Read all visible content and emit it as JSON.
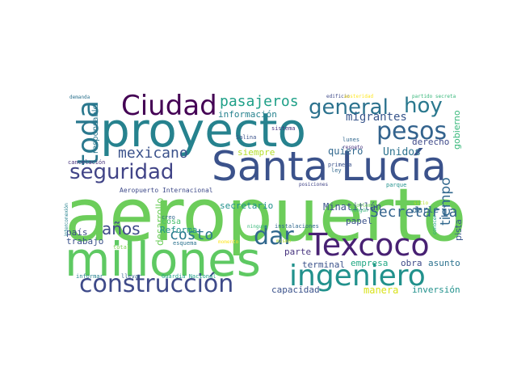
{
  "words": [
    {
      "text": "aeropuerto",
      "color": "#6ccd5a"
    },
    {
      "text": "proyecto",
      "color": "#26828e"
    },
    {
      "text": "millones",
      "color": "#5ec962"
    },
    {
      "text": "Santa Lucía",
      "color": "#3b528b"
    },
    {
      "text": "Ciudad",
      "color": "#440154"
    },
    {
      "text": "ingeniero",
      "color": "#21918c"
    },
    {
      "text": "Texcoco",
      "color": "#482173"
    },
    {
      "text": "construcción",
      "color": "#3e4a89"
    },
    {
      "text": "toda",
      "color": "#2a788e"
    },
    {
      "text": "seguridad",
      "color": "#414487"
    },
    {
      "text": "general",
      "color": "#2c728e"
    },
    {
      "text": "hoy",
      "color": "#2a788e"
    },
    {
      "text": "pesos",
      "color": "#33638d"
    },
    {
      "text": "dar",
      "color": "#31688e"
    },
    {
      "text": "pasajeros",
      "color": "#1fa088"
    },
    {
      "text": "mexicano",
      "color": "#3b528b"
    },
    {
      "text": "Secretaría",
      "color": "#33638d"
    },
    {
      "text": "costo",
      "color": "#2a788e"
    },
    {
      "text": "años",
      "color": "#3e4a89"
    },
    {
      "text": "tiempo",
      "color": "#31688e"
    },
    {
      "text": "migrantes",
      "color": "#39568c"
    },
    {
      "text": "Unidos",
      "color": "#2c728e"
    },
    {
      "text": "Minatitlán",
      "color": "#3b528b"
    },
    {
      "text": "quiero",
      "color": "#31688e"
    },
    {
      "text": "siempre",
      "color": "#b5de2b"
    },
    {
      "text": "secretario",
      "color": "#21918c"
    },
    {
      "text": "información",
      "color": "#26828e"
    },
    {
      "text": "derecho",
      "color": "#3e4989"
    },
    {
      "text": "gobierno",
      "color": "#35b779"
    },
    {
      "text": "responsable",
      "color": "#2a788e"
    },
    {
      "text": "trabajo",
      "color": "#3b528b"
    },
    {
      "text": "país",
      "color": "#3e4a89"
    },
    {
      "text": "desarrollo",
      "color": "#6ccd5a"
    },
    {
      "text": "Reforma",
      "color": "#21918c"
    },
    {
      "text": "cosa",
      "color": "#4ac16d"
    },
    {
      "text": "papel",
      "color": "#3b528b"
    },
    {
      "text": "darle",
      "color": "#31688e"
    },
    {
      "text": "pista",
      "color": "#39568c"
    },
    {
      "text": "parte",
      "color": "#46337e"
    },
    {
      "text": "terminal",
      "color": "#3b528b"
    },
    {
      "text": "empresa",
      "color": "#22a884"
    },
    {
      "text": "obra",
      "color": "#3e4a89"
    },
    {
      "text": "asunto",
      "color": "#2c728e"
    },
    {
      "text": "capacidad",
      "color": "#3b528b"
    },
    {
      "text": "manera",
      "color": "#d8e219"
    },
    {
      "text": "inversión",
      "color": "#21918c"
    },
    {
      "text": "Aeropuerto Internacional",
      "color": "#3e4a89"
    },
    {
      "text": "Guardia Nacional",
      "color": "#1fa088"
    },
    {
      "text": "informar",
      "color": "#26828e"
    },
    {
      "text": "llevar",
      "color": "#33638d"
    },
    {
      "text": "total",
      "color": "#7ad151"
    },
    {
      "text": "momento",
      "color": "#fde725"
    },
    {
      "text": "mismo",
      "color": "#b5de2b"
    },
    {
      "text": "ninguna",
      "color": "#35b779"
    },
    {
      "text": "instalaciones",
      "color": "#31688e"
    },
    {
      "text": "esquema",
      "color": "#2c728e"
    },
    {
      "text": "creo",
      "color": "#31688e"
    },
    {
      "text": "problema",
      "color": "#6ece58"
    },
    {
      "text": "ningún",
      "color": "#35b779"
    },
    {
      "text": "conocer",
      "color": "#1fa088"
    },
    {
      "text": "sitio",
      "color": "#b5de2b"
    },
    {
      "text": "posiciones",
      "color": "#414487"
    },
    {
      "text": "interconexión",
      "color": "#26828e"
    },
    {
      "text": "demanda",
      "color": "#2c728e"
    },
    {
      "text": "edificio",
      "color": "#3e4a89"
    },
    {
      "text": "austeridad",
      "color": "#fde725"
    },
    {
      "text": "partido secreta",
      "color": "#35b779"
    },
    {
      "text": "Salina",
      "color": "#3b528b"
    },
    {
      "text": "sistema",
      "color": "#46337e"
    },
    {
      "text": "lunes",
      "color": "#31688e"
    },
    {
      "text": "respeto",
      "color": "#46337e"
    },
    {
      "text": "primera",
      "color": "#3b528b"
    },
    {
      "text": "ley",
      "color": "#31688e"
    },
    {
      "text": "cancelación",
      "color": "#46337e"
    },
    {
      "text": "parque",
      "color": "#21918c"
    }
  ]
}
